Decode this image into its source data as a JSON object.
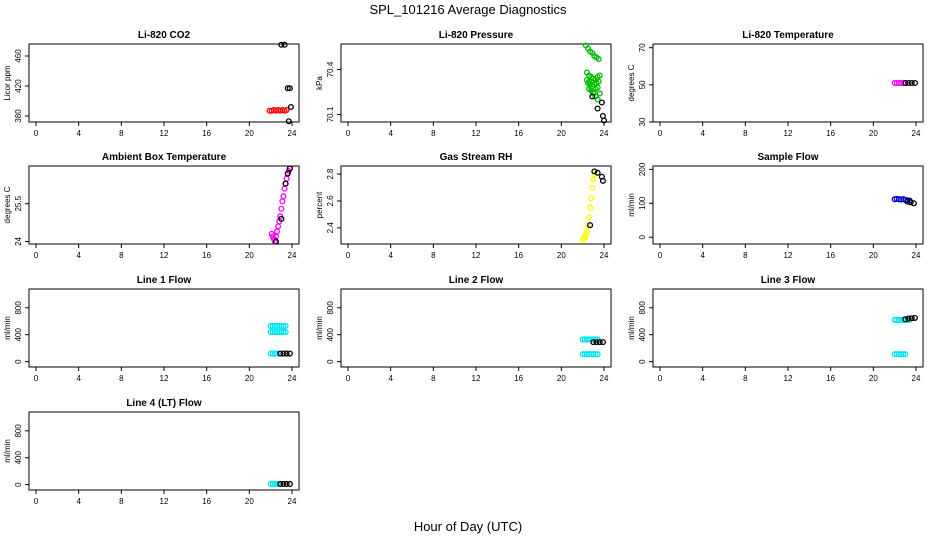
{
  "figure": {
    "title": "SPL_101216  Average Diagnostics",
    "xlabel": "Hour of Day (UTC)"
  },
  "chart_data": [
    {
      "type": "scatter",
      "title": "Li-820 CO2",
      "ylabel": "Licor ppm",
      "xlim": [
        0,
        24
      ],
      "xticks": [
        0,
        4,
        8,
        12,
        16,
        20,
        24
      ],
      "ylim": [
        372,
        476
      ],
      "yticks": [
        380,
        420,
        460
      ],
      "series": [
        {
          "color": "#ff0000",
          "x": [
            21.9,
            22.1,
            22.3,
            22.5,
            22.7,
            22.9,
            23.1,
            23.3,
            23.5
          ],
          "y": [
            387,
            387,
            388,
            387,
            388,
            387,
            388,
            387,
            388
          ]
        },
        {
          "color": "#000000",
          "x": [
            23.0,
            23.3,
            23.6,
            23.8,
            23.9,
            23.7
          ],
          "y": [
            475,
            475,
            417,
            417,
            392,
            373
          ]
        }
      ]
    },
    {
      "type": "scatter",
      "title": "Li-820 Pressure",
      "ylabel": "kPa",
      "xlim": [
        0,
        24
      ],
      "xticks": [
        0,
        4,
        8,
        12,
        16,
        20,
        24
      ],
      "ylim": [
        70.05,
        70.57
      ],
      "yticks": [
        70.1,
        70.4
      ],
      "series": [
        {
          "color": "#00bb00",
          "x": [
            22.3,
            22.5,
            22.7,
            22.9,
            23.1,
            23.3,
            23.5,
            22.4,
            22.6,
            22.8,
            23.0,
            23.2,
            23.4,
            23.6,
            22.5,
            22.7,
            22.9,
            23.1,
            23.3,
            23.5,
            22.6,
            22.8,
            23.0,
            23.2,
            23.4,
            22.4,
            22.6,
            22.8,
            23.0,
            23.2,
            23.4,
            23.6
          ],
          "y": [
            70.56,
            70.54,
            70.52,
            70.51,
            70.49,
            70.48,
            70.47,
            70.38,
            70.36,
            70.35,
            70.34,
            70.33,
            70.35,
            70.36,
            70.31,
            70.3,
            70.29,
            70.3,
            70.31,
            70.32,
            70.27,
            70.26,
            70.25,
            70.27,
            70.28,
            70.33,
            70.32,
            70.28,
            70.24,
            70.22,
            70.2,
            70.24
          ]
        },
        {
          "color": "#000000",
          "x": [
            22.9,
            23.4,
            23.8,
            23.9,
            24.0
          ],
          "y": [
            70.22,
            70.14,
            70.18,
            70.09,
            70.06
          ]
        }
      ]
    },
    {
      "type": "scatter",
      "title": "Li-820 Temperature",
      "ylabel": "degrees C",
      "xlim": [
        0,
        24
      ],
      "xticks": [
        0,
        4,
        8,
        12,
        16,
        20,
        24
      ],
      "ylim": [
        30,
        72
      ],
      "yticks": [
        30,
        50,
        70
      ],
      "series": [
        {
          "color": "#ff00ff",
          "x": [
            22.0,
            22.2,
            22.4,
            22.6,
            22.8,
            23.0
          ],
          "y": [
            51,
            51,
            51,
            51,
            51,
            51
          ]
        },
        {
          "color": "#000000",
          "x": [
            23.0,
            23.3,
            23.6,
            23.9
          ],
          "y": [
            51,
            51,
            51,
            51
          ]
        }
      ]
    },
    {
      "type": "scatter",
      "title": "Ambient Box Temperature",
      "ylabel": "degrees C",
      "xlim": [
        0,
        24
      ],
      "xticks": [
        0,
        4,
        8,
        12,
        16,
        20,
        24
      ],
      "ylim": [
        23.9,
        27.0
      ],
      "yticks": [
        24.0,
        25.5
      ],
      "series": [
        {
          "color": "#ff00ff",
          "x": [
            22.1,
            22.2,
            22.3,
            22.4,
            22.5,
            22.6,
            22.7,
            22.8,
            22.9,
            23.0,
            23.1,
            23.2,
            23.3,
            23.4,
            23.5,
            23.6,
            23.7,
            23.8
          ],
          "y": [
            24.3,
            24.2,
            24.1,
            24.0,
            24.2,
            24.4,
            24.6,
            24.8,
            25.0,
            25.3,
            25.6,
            25.8,
            26.1,
            26.3,
            26.5,
            26.7,
            26.8,
            26.9
          ]
        },
        {
          "color": "#000000",
          "x": [
            22.5,
            23.0,
            23.4,
            23.6,
            23.8
          ],
          "y": [
            24.0,
            24.9,
            26.3,
            26.7,
            26.9
          ]
        }
      ]
    },
    {
      "type": "scatter",
      "title": "Gas Stream RH",
      "ylabel": "percent",
      "xlim": [
        0,
        24
      ],
      "xticks": [
        0,
        4,
        8,
        12,
        16,
        20,
        24
      ],
      "ylim": [
        2.28,
        2.86
      ],
      "yticks": [
        2.4,
        2.6,
        2.8
      ],
      "series": [
        {
          "color": "#ffff00",
          "x": [
            22.0,
            22.1,
            22.2,
            22.3,
            22.4,
            22.5,
            22.6,
            22.7,
            22.8,
            22.9,
            23.0,
            23.1
          ],
          "y": [
            2.31,
            2.32,
            2.33,
            2.35,
            2.37,
            2.42,
            2.48,
            2.55,
            2.62,
            2.7,
            2.76,
            2.8
          ]
        },
        {
          "color": "#000000",
          "x": [
            22.7,
            23.1,
            23.4,
            23.8,
            23.9
          ],
          "y": [
            2.42,
            2.82,
            2.81,
            2.78,
            2.75
          ]
        }
      ]
    },
    {
      "type": "scatter",
      "title": "Sample Flow",
      "ylabel": "ml/min",
      "xlim": [
        0,
        24
      ],
      "xticks": [
        0,
        4,
        8,
        12,
        16,
        20,
        24
      ],
      "ylim": [
        -20,
        210
      ],
      "yticks": [
        0,
        100,
        200
      ],
      "series": [
        {
          "color": "#0000cc",
          "x": [
            22.0,
            22.2,
            22.4,
            22.6,
            22.8,
            23.0,
            23.2,
            23.4
          ],
          "y": [
            112,
            113,
            112,
            111,
            112,
            110,
            109,
            108
          ]
        },
        {
          "color": "#000000",
          "x": [
            23.2,
            23.5,
            23.8
          ],
          "y": [
            105,
            103,
            100
          ]
        }
      ]
    },
    {
      "type": "scatter",
      "title": "Line 1 Flow",
      "ylabel": "ml/min",
      "xlim": [
        0,
        24
      ],
      "xticks": [
        0,
        4,
        8,
        12,
        16,
        20,
        24
      ],
      "ylim": [
        -80,
        1080
      ],
      "yticks": [
        0,
        400,
        800
      ],
      "series": [
        {
          "color": "#00e5ee",
          "x": [
            22.0,
            22.2,
            22.4,
            22.6,
            22.8,
            23.0,
            23.2,
            23.4,
            22.0,
            22.2,
            22.4,
            22.6,
            22.8,
            23.0,
            23.2,
            23.4,
            22.0,
            22.2,
            22.4,
            22.6
          ],
          "y": [
            530,
            530,
            530,
            530,
            530,
            530,
            530,
            530,
            440,
            440,
            440,
            440,
            440,
            440,
            440,
            440,
            120,
            120,
            120,
            120
          ]
        },
        {
          "color": "#000000",
          "x": [
            22.9,
            23.2,
            23.5,
            23.8
          ],
          "y": [
            120,
            120,
            120,
            120
          ]
        }
      ]
    },
    {
      "type": "scatter",
      "title": "Line 2 Flow",
      "ylabel": "ml/min",
      "xlim": [
        0,
        24
      ],
      "xticks": [
        0,
        4,
        8,
        12,
        16,
        20,
        24
      ],
      "ylim": [
        -80,
        1080
      ],
      "yticks": [
        0,
        400,
        800
      ],
      "series": [
        {
          "color": "#00e5ee",
          "x": [
            22.0,
            22.2,
            22.4,
            22.6,
            22.8,
            23.0,
            23.2,
            23.4,
            22.0,
            22.2,
            22.4,
            22.6,
            22.8,
            23.0,
            23.2,
            23.4
          ],
          "y": [
            330,
            330,
            330,
            330,
            330,
            330,
            330,
            330,
            110,
            110,
            110,
            110,
            110,
            110,
            110,
            110
          ]
        },
        {
          "color": "#000000",
          "x": [
            23.0,
            23.3,
            23.6,
            23.9
          ],
          "y": [
            290,
            290,
            290,
            290
          ]
        }
      ]
    },
    {
      "type": "scatter",
      "title": "Line 3 Flow",
      "ylabel": "ml/min",
      "xlim": [
        0,
        24
      ],
      "xticks": [
        0,
        4,
        8,
        12,
        16,
        20,
        24
      ],
      "ylim": [
        -80,
        1080
      ],
      "yticks": [
        0,
        400,
        800
      ],
      "series": [
        {
          "color": "#00e5ee",
          "x": [
            22.0,
            22.2,
            22.4,
            22.6,
            22.8,
            23.0,
            23.2,
            23.4,
            22.0,
            22.2,
            22.4,
            22.6,
            22.8,
            23.0
          ],
          "y": [
            620,
            620,
            620,
            620,
            620,
            620,
            620,
            620,
            110,
            110,
            110,
            110,
            110,
            110
          ]
        },
        {
          "color": "#000000",
          "x": [
            23.0,
            23.3,
            23.6,
            23.9
          ],
          "y": [
            630,
            640,
            645,
            650
          ]
        }
      ]
    },
    {
      "type": "scatter",
      "title": "Line 4 (LT) Flow",
      "ylabel": "ml/min",
      "xlim": [
        0,
        24
      ],
      "xticks": [
        0,
        4,
        8,
        12,
        16,
        20,
        24
      ],
      "ylim": [
        -80,
        1080
      ],
      "yticks": [
        0,
        400,
        800
      ],
      "series": [
        {
          "color": "#00e5ee",
          "x": [
            22.0,
            22.2,
            22.4,
            22.6,
            22.8
          ],
          "y": [
            10,
            10,
            10,
            10,
            10
          ]
        },
        {
          "color": "#000000",
          "x": [
            22.9,
            23.2,
            23.5,
            23.8
          ],
          "y": [
            10,
            10,
            10,
            10
          ]
        }
      ]
    }
  ]
}
